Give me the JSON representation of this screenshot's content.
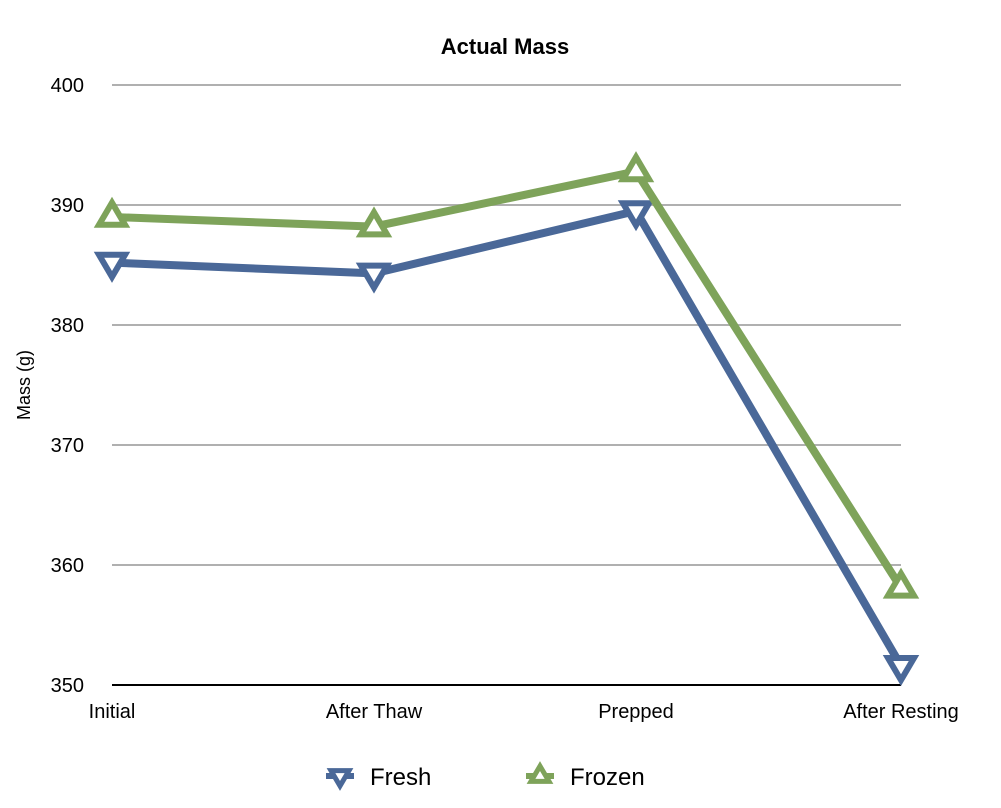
{
  "chart_data": {
    "type": "line",
    "title": "Actual Mass",
    "xlabel": "",
    "ylabel": "Mass (g)",
    "categories": [
      "Initial",
      "After Thaw",
      "Prepped",
      "After Resting"
    ],
    "ylim": [
      350,
      400
    ],
    "yticks": [
      350,
      360,
      370,
      380,
      390,
      400
    ],
    "grid": true,
    "legend_position": "bottom",
    "series": [
      {
        "name": "Fresh",
        "color": "#4a6898",
        "marker": "triangle-down",
        "values": [
          385.2,
          384.3,
          389.5,
          351.6
        ]
      },
      {
        "name": "Frozen",
        "color": "#7ea35a",
        "marker": "triangle-up",
        "values": [
          389.0,
          388.2,
          392.8,
          358.1
        ]
      }
    ]
  }
}
